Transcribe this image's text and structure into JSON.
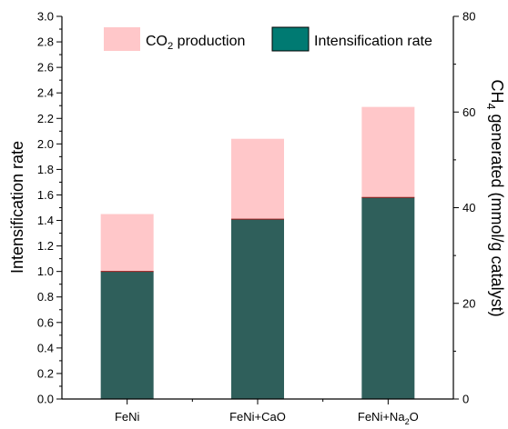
{
  "chart_data": {
    "type": "bar",
    "stacked": true,
    "categories": [
      "FeNi",
      "FeNi+CaO",
      "FeNi+Na2O"
    ],
    "category_labels": [
      {
        "base": "FeNi",
        "sub": "",
        "tail": ""
      },
      {
        "base": "FeNi+CaO",
        "sub": "",
        "tail": ""
      },
      {
        "base": "FeNi+Na",
        "sub": "2",
        "tail": "O"
      }
    ],
    "series": [
      {
        "name": "Intensification rate",
        "values": [
          1.0,
          1.41,
          1.58
        ],
        "color": "#2f5f5b"
      },
      {
        "name": "CO2 production",
        "values": [
          0.45,
          0.63,
          0.71
        ],
        "color": "#ffc7c9"
      }
    ],
    "legend": {
      "co2": {
        "base": "CO",
        "sub": "2",
        "tail": " production"
      },
      "intens": {
        "base": "Intensification rate"
      },
      "co2_color": "#ffc7c9",
      "intens_color": "#007a72",
      "placement": "top"
    },
    "ylabel": "Intensification rate",
    "ylim": [
      0,
      3.0
    ],
    "yticks": [
      "0.0",
      "0.2",
      "0.4",
      "0.6",
      "0.8",
      "1.0",
      "1.2",
      "1.4",
      "1.6",
      "1.8",
      "2.0",
      "2.2",
      "2.4",
      "2.6",
      "2.8",
      "3.0"
    ],
    "y2label": {
      "base": "CH",
      "sub": "4",
      "tail": " generated (mmol/g catalyst)"
    },
    "y2lim": [
      0,
      80
    ],
    "y2ticks": [
      "0",
      "20",
      "40",
      "60",
      "80"
    ],
    "grid": false
  }
}
